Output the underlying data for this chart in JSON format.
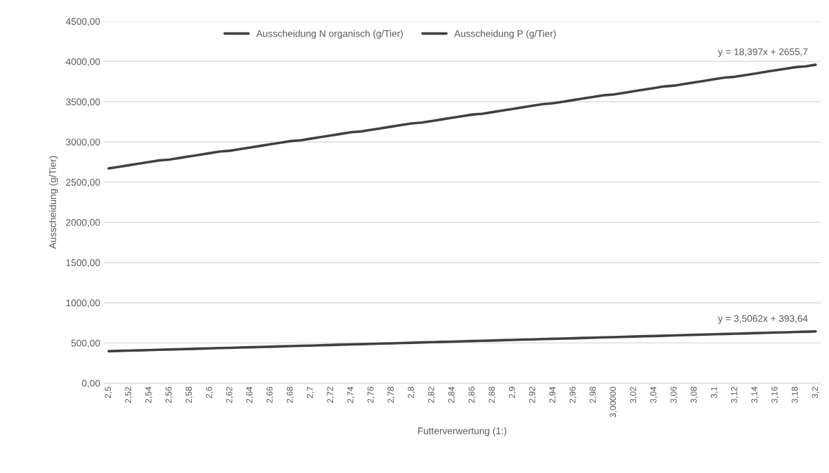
{
  "chart_data": {
    "type": "line",
    "xlabel": "Futterverwertung (1:)",
    "ylabel": "Ausscheidung (g/Tier)",
    "categories": [
      "2,5",
      null,
      "2,52",
      null,
      "2,54",
      null,
      "2,56",
      null,
      "2,58",
      null,
      "2,6",
      null,
      "2,62",
      null,
      "2,64",
      null,
      "2,66",
      null,
      "2,68",
      null,
      "2,7",
      null,
      "2,72",
      null,
      "2,74",
      null,
      "2,76",
      null,
      "2,78",
      null,
      "2,8",
      null,
      "2,82",
      null,
      "2,84",
      null,
      "2,86",
      null,
      "2,88",
      null,
      "2,9",
      null,
      "2,92",
      null,
      "2,94",
      null,
      "2,96",
      null,
      "2,98",
      null,
      "3,00000",
      null,
      "3,02",
      null,
      "3,04",
      null,
      "3,06",
      null,
      "3,08",
      null,
      "3,1",
      null,
      "3,12",
      null,
      "3,14",
      null,
      "3,16",
      null,
      "3,18",
      null,
      "3,2"
    ],
    "series": [
      {
        "name": "Ausscheidung N organisch (g/Tier)",
        "color": "#404040",
        "values": [
          2670,
          2690,
          2710,
          2730,
          2750,
          2770,
          2780,
          2800,
          2820,
          2840,
          2860,
          2880,
          2890,
          2910,
          2930,
          2950,
          2970,
          2990,
          3010,
          3020,
          3040,
          3060,
          3080,
          3100,
          3120,
          3130,
          3150,
          3170,
          3190,
          3210,
          3230,
          3240,
          3260,
          3280,
          3300,
          3320,
          3340,
          3350,
          3370,
          3390,
          3410,
          3430,
          3450,
          3470,
          3480,
          3500,
          3520,
          3540,
          3560,
          3580,
          3590,
          3610,
          3630,
          3650,
          3670,
          3690,
          3700,
          3720,
          3740,
          3760,
          3780,
          3800,
          3810,
          3830,
          3850,
          3870,
          3890,
          3910,
          3930,
          3940,
          3960
        ]
      },
      {
        "name": "Ausscheidung P (g/Tier)",
        "color": "#404040",
        "values": [
          397,
          401,
          404,
          408,
          411,
          415,
          418,
          422,
          425,
          429,
          432,
          436,
          439,
          443,
          446,
          450,
          453,
          457,
          460,
          464,
          467,
          471,
          474,
          478,
          481,
          485,
          488,
          492,
          495,
          499,
          502,
          506,
          509,
          513,
          516,
          520,
          523,
          527,
          530,
          534,
          537,
          541,
          544,
          548,
          551,
          555,
          558,
          562,
          565,
          569,
          572,
          576,
          579,
          583,
          586,
          590,
          593,
          597,
          601,
          604,
          608,
          611,
          615,
          618,
          622,
          625,
          629,
          632,
          636,
          639,
          643
        ]
      }
    ],
    "ylim": [
      0,
      4500
    ],
    "yticks": [
      {
        "value": 0,
        "label": "0,00"
      },
      {
        "value": 500,
        "label": "500,00"
      },
      {
        "value": 1000,
        "label": "1000,00"
      },
      {
        "value": 1500,
        "label": "1500,00"
      },
      {
        "value": 2000,
        "label": "2000,00"
      },
      {
        "value": 2500,
        "label": "2500,00"
      },
      {
        "value": 3000,
        "label": "3000,00"
      },
      {
        "value": 3500,
        "label": "3500,00"
      },
      {
        "value": 4000,
        "label": "4000,00"
      },
      {
        "value": 4500,
        "label": "4500,00"
      }
    ],
    "grid": "y",
    "legend": "top",
    "marker": "none",
    "line_style": "solid",
    "annotations": [
      {
        "text": "y = 18,397x + 2655,7",
        "x": "3,2",
        "y": 3960
      },
      {
        "text": "y = 3,5062x + 393,64",
        "x": "3,2",
        "y": 643
      }
    ]
  }
}
